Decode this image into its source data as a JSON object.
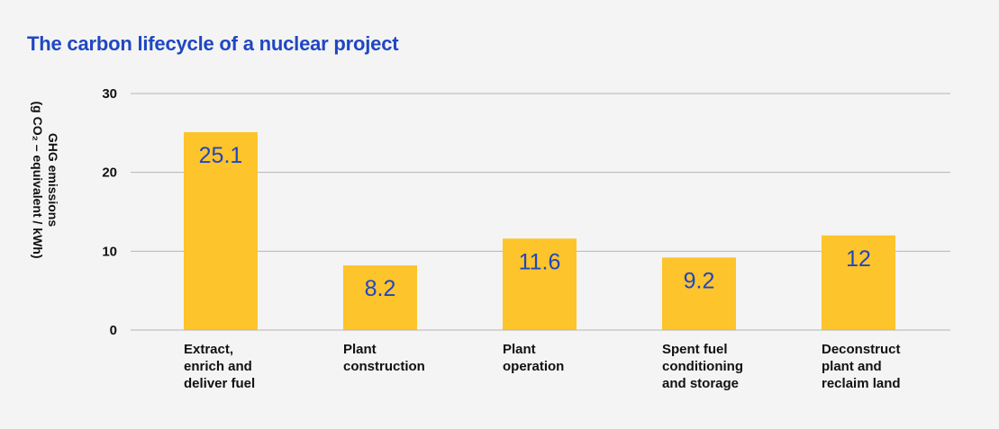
{
  "chart_data": {
    "type": "bar",
    "title": "The carbon lifecycle of a nuclear project",
    "ylabel_line1": "GHG emissions",
    "ylabel_line2": "(g CO₂ – equivalent / kWh)",
    "ylim": [
      0,
      30
    ],
    "yticks": [
      "0",
      "10",
      "20",
      "30"
    ],
    "grid": true,
    "categories": [
      "Extract, enrich and deliver fuel",
      "Plant construction",
      "Plant operation",
      "Spent fuel conditioning and storage",
      "Deconstruct plant and reclaim land"
    ],
    "category_lines": [
      [
        "Extract,",
        "enrich and",
        "deliver fuel"
      ],
      [
        "Plant",
        "construction"
      ],
      [
        "Plant",
        "operation"
      ],
      [
        "Spent fuel",
        "conditioning",
        "and storage"
      ],
      [
        "Deconstruct",
        "plant and",
        "reclaim land"
      ]
    ],
    "values": [
      25.1,
      8.2,
      11.6,
      9.2,
      12
    ],
    "value_labels": [
      "25.1",
      "8.2",
      "11.6",
      "9.2",
      "12"
    ],
    "colors": {
      "bar": "#fdc42b",
      "label": "#1f47c2",
      "grid": "#b5b5b5",
      "title": "#1f47c2"
    }
  }
}
